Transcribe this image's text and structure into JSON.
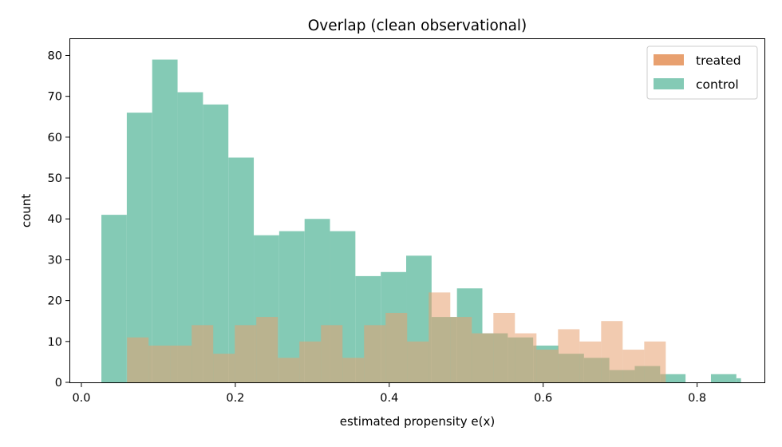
{
  "chart_data": {
    "type": "bar",
    "title": "Overlap (clean observational)",
    "xlabel": "estimated propensity e(x)",
    "ylabel": "count",
    "xlim": [
      -0.0145,
      0.8875
    ],
    "ylim": [
      0,
      84
    ],
    "xticks": [
      0.0,
      0.2,
      0.4,
      0.6,
      0.8
    ],
    "xtick_labels": [
      "0.0",
      "0.2",
      "0.4",
      "0.6",
      "0.8"
    ],
    "yticks": [
      0,
      10,
      20,
      30,
      40,
      50,
      60,
      70,
      80
    ],
    "ytick_labels": [
      "0",
      "10",
      "20",
      "30",
      "40",
      "50",
      "60",
      "70",
      "80"
    ],
    "grid": false,
    "legend_position": "top-right",
    "series": [
      {
        "name": "treated",
        "color": "#E8A06F",
        "bin_edges": [
          0.0593,
          0.0873,
          0.1153,
          0.1433,
          0.1713,
          0.1993,
          0.2273,
          0.2553,
          0.2833,
          0.3113,
          0.3393,
          0.3673,
          0.3953,
          0.4233,
          0.4513,
          0.4793,
          0.5073,
          0.5353,
          0.5633,
          0.5913,
          0.6193,
          0.6473,
          0.6753,
          0.7033,
          0.7313,
          0.7593,
          0.7753
        ],
        "counts": [
          11,
          9,
          9,
          14,
          7,
          14,
          16,
          6,
          10,
          14,
          6,
          14,
          17,
          10,
          22,
          16,
          12,
          17,
          12,
          8,
          13,
          10,
          15,
          8,
          10,
          0
        ]
      },
      {
        "name": "control",
        "color": "#84CAB5",
        "bin_edges": [
          0.026,
          0.059,
          0.092,
          0.125,
          0.158,
          0.191,
          0.224,
          0.257,
          0.29,
          0.323,
          0.356,
          0.389,
          0.422,
          0.455,
          0.488,
          0.521,
          0.554,
          0.587,
          0.62,
          0.653,
          0.686,
          0.719,
          0.752,
          0.785,
          0.818,
          0.851,
          0.857
        ],
        "counts": [
          41,
          66,
          79,
          71,
          68,
          55,
          36,
          37,
          40,
          37,
          26,
          27,
          31,
          16,
          23,
          12,
          11,
          9,
          7,
          6,
          3,
          4,
          2,
          0,
          2,
          1
        ]
      }
    ]
  }
}
